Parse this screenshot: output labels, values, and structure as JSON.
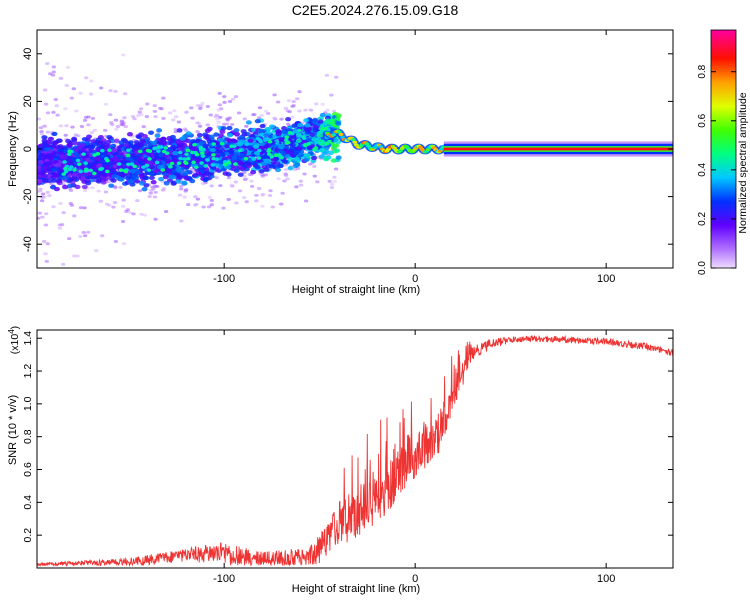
{
  "title": "C2E5.2024.276.15.09.G18",
  "chart_data": [
    {
      "type": "heatmap",
      "name": "spectrogram",
      "xlabel": "Height of straight line (km)",
      "ylabel": "Frequency (Hz)",
      "xlim": [
        -198,
        135
      ],
      "ylim": [
        -50,
        50
      ],
      "x_ticks": [
        -100,
        0,
        100
      ],
      "y_ticks": [
        -40,
        -20,
        0,
        20,
        40
      ],
      "trend": [
        {
          "x": -198,
          "freq": -6,
          "spread": 6,
          "amp": 0.22
        },
        {
          "x": -150,
          "freq": -5,
          "spread": 6,
          "amp": 0.24
        },
        {
          "x": -100,
          "freq": -2,
          "spread": 6,
          "amp": 0.27
        },
        {
          "x": -70,
          "freq": 1,
          "spread": 6,
          "amp": 0.3
        },
        {
          "x": -50,
          "freq": 5,
          "spread": 6,
          "amp": 0.32
        },
        {
          "x": -42,
          "freq": 7,
          "spread": 2,
          "amp": 0.45
        },
        {
          "x": -30,
          "freq": 2,
          "spread": 1.5,
          "amp": 0.55
        },
        {
          "x": -15,
          "freq": 0,
          "spread": 1,
          "amp": 0.6
        },
        {
          "x": 0,
          "freq": 0,
          "spread": 1,
          "amp": 0.65
        },
        {
          "x": 15,
          "freq": 0,
          "spread": 0.5,
          "amp": 0.9
        },
        {
          "x": 135,
          "freq": 0,
          "spread": 0.5,
          "amp": 0.95
        }
      ],
      "colorbar": {
        "label": "Normalized spectral amplitude",
        "range": [
          0,
          0.97
        ],
        "ticks": [
          0.0,
          0.2,
          0.4,
          0.6,
          0.8
        ],
        "tick_labels": [
          "0.0",
          "0.2",
          "0.4",
          "0.6",
          "0.8"
        ]
      }
    },
    {
      "type": "line",
      "name": "snr",
      "xlabel": "Height of straight line (km)",
      "ylabel": "SNR (10 * v/v)",
      "multiplier_label": "(x10",
      "multiplier_exp": "4",
      "y_unit": 10000,
      "xlim": [
        -198,
        135
      ],
      "ylim": [
        0,
        14500
      ],
      "x_ticks": [
        -100,
        0,
        100
      ],
      "y_ticks": [
        2000,
        4000,
        6000,
        8000,
        10000,
        12000,
        14000
      ],
      "y_tick_labels": [
        "0.2",
        "0.4",
        "0.6",
        "0.8",
        "1.0",
        "1.2",
        "1.4"
      ],
      "color": "#ee3333",
      "envelope": [
        {
          "x": -198,
          "y": 300
        },
        {
          "x": -150,
          "y": 600
        },
        {
          "x": -120,
          "y": 1200
        },
        {
          "x": -100,
          "y": 1600
        },
        {
          "x": -80,
          "y": 1000
        },
        {
          "x": -55,
          "y": 1300
        },
        {
          "x": -40,
          "y": 4000
        },
        {
          "x": -25,
          "y": 5500
        },
        {
          "x": -10,
          "y": 7500
        },
        {
          "x": 0,
          "y": 8500
        },
        {
          "x": 10,
          "y": 9000
        },
        {
          "x": 20,
          "y": 11500
        },
        {
          "x": 30,
          "y": 13500
        },
        {
          "x": 40,
          "y": 14000
        },
        {
          "x": 60,
          "y": 14200
        },
        {
          "x": 100,
          "y": 14000
        },
        {
          "x": 120,
          "y": 13700
        },
        {
          "x": 135,
          "y": 13300
        }
      ],
      "noise": [
        {
          "x": -198,
          "y": 200
        },
        {
          "x": -120,
          "y": 800
        },
        {
          "x": -100,
          "y": 1400
        },
        {
          "x": -80,
          "y": 1300
        },
        {
          "x": -60,
          "y": 1200
        },
        {
          "x": -42,
          "y": 2500
        },
        {
          "x": -25,
          "y": 3500
        },
        {
          "x": -10,
          "y": 3500
        },
        {
          "x": 0,
          "y": 3000
        },
        {
          "x": 15,
          "y": 2500
        },
        {
          "x": 30,
          "y": 800
        },
        {
          "x": 50,
          "y": 400
        },
        {
          "x": 135,
          "y": 400
        }
      ]
    }
  ]
}
